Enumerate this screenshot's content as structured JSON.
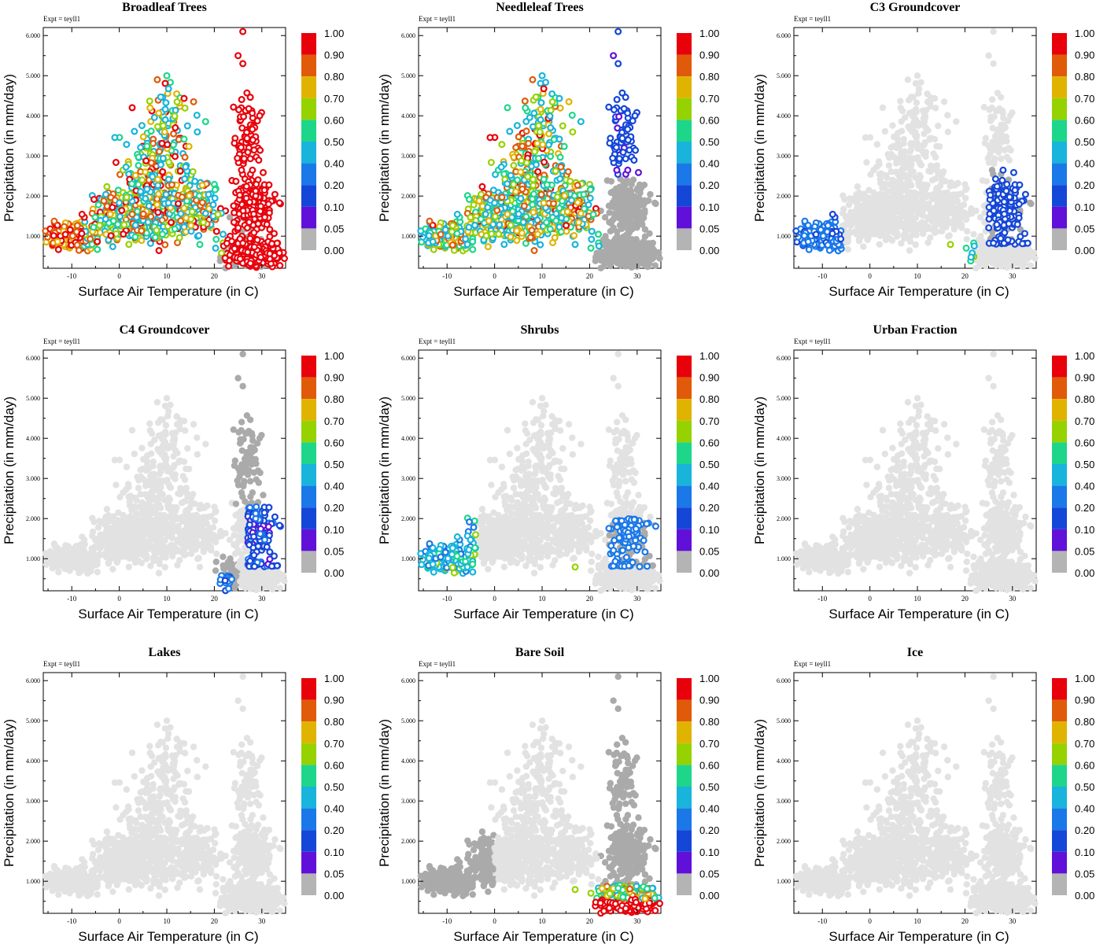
{
  "figure": {
    "x_axis_label": "Surface Air Temperature (in C)",
    "y_axis_label": "Precipitation (in mm/day)",
    "expt_label": "Expt = teyll1",
    "colorbar_labels": [
      "1.00",
      "0.90",
      "0.80",
      "0.70",
      "0.60",
      "0.50",
      "0.40",
      "0.20",
      "0.10",
      "0.05",
      "0.00"
    ],
    "colorbar_colors": [
      "#e8000b",
      "#e8000b",
      "#e05a0a",
      "#e0b300",
      "#96d200",
      "#1dd68a",
      "#18b4dc",
      "#1a78e8",
      "#1446d8",
      "#6010d8",
      "#b4b4b4"
    ],
    "xtick_labels": [
      "-10",
      "0",
      "10",
      "20",
      "30"
    ],
    "ytick_labels": [
      "1.000",
      "2.000",
      "3.000",
      "4.000",
      "5.000",
      "6.000"
    ],
    "background_gray": "#e2e2e2",
    "zero_gray": "#aaaaaa"
  },
  "chart_data": [
    {
      "type": "scatter",
      "title": "Broadleaf Trees",
      "xlabel": "Surface Air Temperature (in C)",
      "ylabel": "Precipitation (in mm/day)",
      "xlim": [
        -16,
        35
      ],
      "ylim": [
        0.2,
        6.2
      ],
      "colorbar": "fraction 0.00-1.00",
      "colored_pattern": "trees"
    },
    {
      "type": "scatter",
      "title": "Needleleaf Trees",
      "xlabel": "Surface Air Temperature (in C)",
      "ylabel": "Precipitation (in mm/day)",
      "xlim": [
        -16,
        35
      ],
      "ylim": [
        0.2,
        6.2
      ],
      "colorbar": "fraction 0.00-1.00",
      "colored_pattern": "needle"
    },
    {
      "type": "scatter",
      "title": "C3 Groundcover",
      "xlabel": "Surface Air Temperature (in C)",
      "ylabel": "Precipitation (in mm/day)",
      "xlim": [
        -16,
        35
      ],
      "ylim": [
        0.2,
        6.2
      ],
      "colorbar": "fraction 0.00-1.00",
      "colored_pattern": "c3"
    },
    {
      "type": "scatter",
      "title": "C4 Groundcover",
      "xlabel": "Surface Air Temperature (in C)",
      "ylabel": "Precipitation (in mm/day)",
      "xlim": [
        -16,
        35
      ],
      "ylim": [
        0.2,
        6.2
      ],
      "colorbar": "fraction 0.00-1.00",
      "colored_pattern": "c4"
    },
    {
      "type": "scatter",
      "title": "Shrubs",
      "xlabel": "Surface Air Temperature (in C)",
      "ylabel": "Precipitation (in mm/day)",
      "xlim": [
        -16,
        35
      ],
      "ylim": [
        0.2,
        6.2
      ],
      "colorbar": "fraction 0.00-1.00",
      "colored_pattern": "shrubs"
    },
    {
      "type": "scatter",
      "title": "Urban Fraction",
      "xlabel": "Surface Air Temperature (in C)",
      "ylabel": "Precipitation (in mm/day)",
      "xlim": [
        -16,
        35
      ],
      "ylim": [
        0.2,
        6.2
      ],
      "colorbar": "fraction 0.00-1.00",
      "colored_pattern": "none"
    },
    {
      "type": "scatter",
      "title": "Lakes",
      "xlabel": "Surface Air Temperature (in C)",
      "ylabel": "Precipitation (in mm/day)",
      "xlim": [
        -16,
        35
      ],
      "ylim": [
        0.2,
        6.2
      ],
      "colorbar": "fraction 0.00-1.00",
      "colored_pattern": "none"
    },
    {
      "type": "scatter",
      "title": "Bare Soil",
      "xlabel": "Surface Air Temperature (in C)",
      "ylabel": "Precipitation (in mm/day)",
      "xlim": [
        -16,
        35
      ],
      "ylim": [
        0.2,
        6.2
      ],
      "colorbar": "fraction 0.00-1.00",
      "colored_pattern": "bare"
    },
    {
      "type": "scatter",
      "title": "Ice",
      "xlabel": "Surface Air Temperature (in C)",
      "ylabel": "Precipitation (in mm/day)",
      "xlim": [
        -16,
        35
      ],
      "ylim": [
        0.2,
        6.2
      ],
      "colorbar": "fraction 0.00-1.00",
      "colored_pattern": "none"
    }
  ]
}
